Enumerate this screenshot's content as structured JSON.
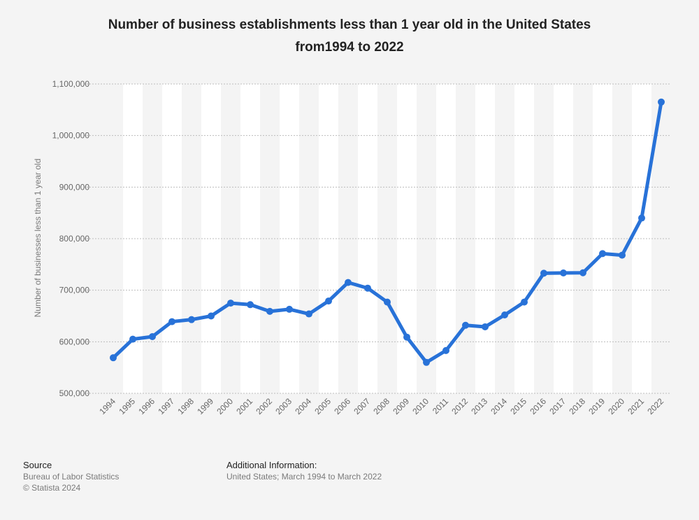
{
  "title": {
    "line1": "Number of business establishments less than 1 year old in the United States",
    "line2": "from1994 to 2022"
  },
  "chart_data": {
    "type": "line",
    "title": "Number of business establishments less than 1 year old in the United States from1994 to 2022",
    "ylabel": "Number of businesses less than 1 year old",
    "xlabel": "",
    "ylim": [
      500000,
      1100000
    ],
    "yticks": [
      500000,
      600000,
      700000,
      800000,
      900000,
      1000000,
      1100000
    ],
    "ytick_labels": [
      "500,000",
      "600,000",
      "700,000",
      "800,000",
      "900,000",
      "1,000,000",
      "1,100,000"
    ],
    "grid": true,
    "categories": [
      "1994",
      "1995",
      "1996",
      "1997",
      "1998",
      "1999",
      "2000",
      "2001",
      "2002",
      "2003",
      "2004",
      "2005",
      "2006",
      "2007",
      "2008",
      "2009",
      "2010",
      "2011",
      "2012",
      "2013",
      "2014",
      "2015",
      "2016",
      "2017",
      "2018",
      "2019",
      "2020",
      "2021",
      "2022"
    ],
    "series": [
      {
        "name": "",
        "color": "#2872d8",
        "values": [
          569000,
          605000,
          610000,
          639000,
          643000,
          650000,
          675000,
          672000,
          659000,
          663000,
          654000,
          679000,
          715000,
          704000,
          677000,
          609000,
          560000,
          583000,
          632000,
          629000,
          652000,
          677000,
          733000,
          733500,
          733800,
          771000,
          768000,
          840000,
          1065000
        ]
      }
    ]
  },
  "footer": {
    "source_heading": "Source",
    "source_line1": "Bureau of Labor Statistics",
    "source_line2": "© Statista 2024",
    "info_heading": "Additional Information:",
    "info_line1": "United States; March 1994 to March 2022"
  },
  "colors": {
    "line": "#2872d8",
    "band": "#ffffff",
    "background": "#f4f4f4",
    "grid": "#bcbcbc",
    "axis_text": "#666666"
  }
}
